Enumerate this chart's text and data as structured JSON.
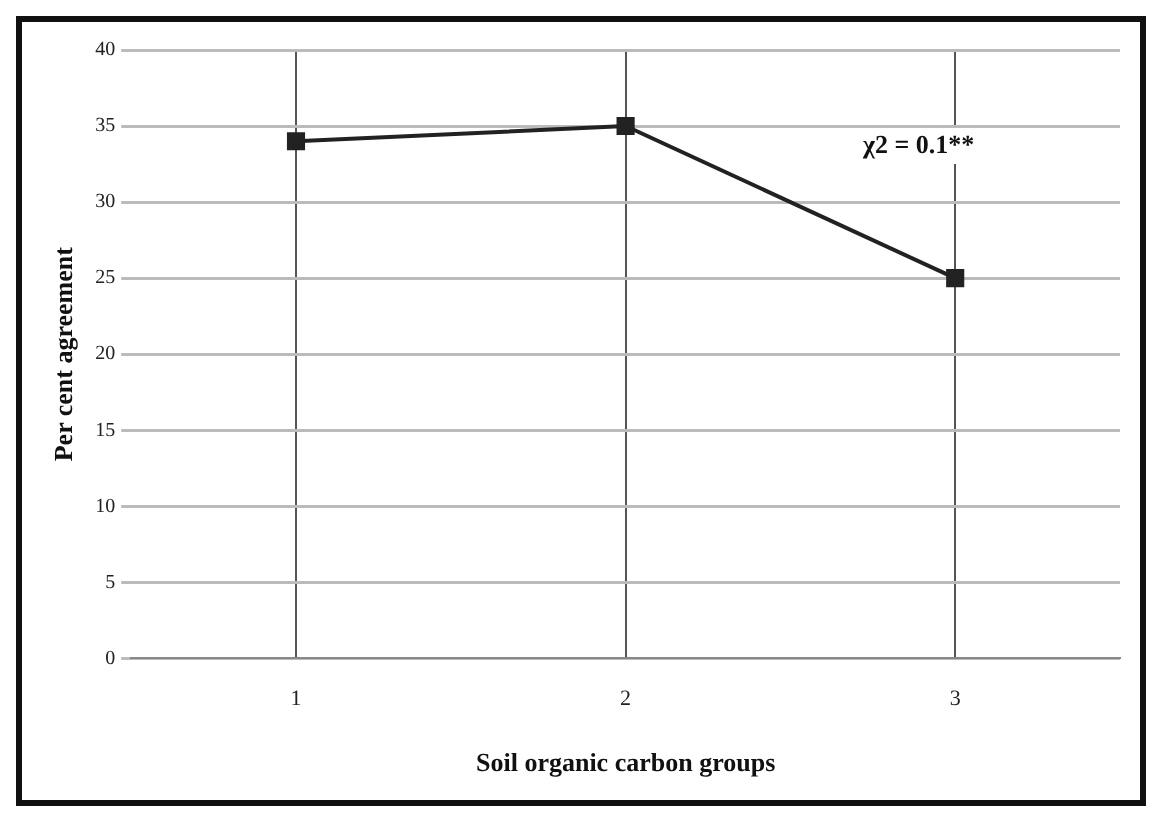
{
  "chart_data": {
    "type": "line",
    "xlabel": "Soil organic carbon groups",
    "ylabel": "Per cent agreement",
    "categories": [
      "1",
      "2",
      "3"
    ],
    "series": [
      {
        "color": "#222222",
        "values": [
          34,
          35,
          25
        ]
      }
    ],
    "ylim": [
      0,
      40
    ],
    "yticks": [
      0,
      5,
      10,
      15,
      20,
      25,
      30,
      35,
      40
    ],
    "grid": true,
    "legend": false,
    "marker": "square",
    "line_style": "solid",
    "annotations": [
      "χ2 = 0.1**"
    ]
  }
}
